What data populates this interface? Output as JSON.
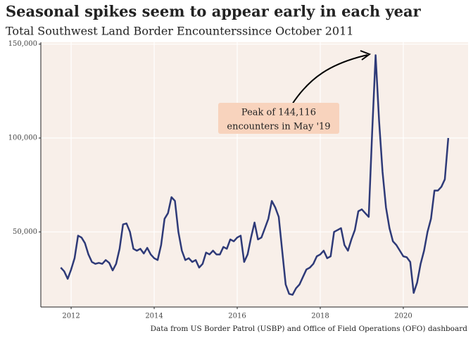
{
  "chart_data": {
    "type": "line",
    "title": "Seasonal spikes seem to appear early in each year",
    "subtitle": "Total Southwest Land Border Encounterssince October 2011",
    "caption": "Data from US Border Patrol (USBP) and Office of Field Operations (OFO) dashboard",
    "annotation": [
      "Peak of 144,116",
      "encounters in May '19"
    ],
    "x": [
      2011.75,
      2011.833,
      2011.917,
      2012.0,
      2012.083,
      2012.167,
      2012.25,
      2012.333,
      2012.417,
      2012.5,
      2012.583,
      2012.667,
      2012.75,
      2012.833,
      2012.917,
      2013.0,
      2013.083,
      2013.167,
      2013.25,
      2013.333,
      2013.417,
      2013.5,
      2013.583,
      2013.667,
      2013.75,
      2013.833,
      2013.917,
      2014.0,
      2014.083,
      2014.167,
      2014.25,
      2014.333,
      2014.417,
      2014.5,
      2014.583,
      2014.667,
      2014.75,
      2014.833,
      2014.917,
      2015.0,
      2015.083,
      2015.167,
      2015.25,
      2015.333,
      2015.417,
      2015.5,
      2015.583,
      2015.667,
      2015.75,
      2015.833,
      2015.917,
      2016.0,
      2016.083,
      2016.167,
      2016.25,
      2016.333,
      2016.417,
      2016.5,
      2016.583,
      2016.667,
      2016.75,
      2016.833,
      2016.917,
      2017.0,
      2017.083,
      2017.167,
      2017.25,
      2017.333,
      2017.417,
      2017.5,
      2017.583,
      2017.667,
      2017.75,
      2017.833,
      2017.917,
      2018.0,
      2018.083,
      2018.167,
      2018.25,
      2018.333,
      2018.417,
      2018.5,
      2018.583,
      2018.667,
      2018.75,
      2018.833,
      2018.917,
      2019.0,
      2019.083,
      2019.167,
      2019.25,
      2019.333,
      2019.417,
      2019.5,
      2019.583,
      2019.667,
      2019.75,
      2019.833,
      2019.917,
      2020.0,
      2020.083,
      2020.167,
      2020.25,
      2020.333,
      2020.417,
      2020.5,
      2020.583,
      2020.667,
      2020.75,
      2020.833,
      2020.917,
      2021.0,
      2021.083
    ],
    "series": [
      {
        "color": "#2e3a78",
        "values": [
          31000,
          29000,
          25000,
          30000,
          36000,
          48000,
          47000,
          44000,
          38000,
          34000,
          33000,
          33500,
          33000,
          35000,
          33500,
          29500,
          33000,
          41000,
          54000,
          54500,
          50000,
          41000,
          40000,
          41000,
          38500,
          41500,
          38000,
          36000,
          35000,
          43000,
          57000,
          60000,
          68500,
          66500,
          50000,
          40000,
          35000,
          36000,
          34000,
          35000,
          31000,
          33000,
          39000,
          38000,
          40000,
          38000,
          38000,
          42000,
          41000,
          46000,
          45000,
          47000,
          48000,
          34000,
          38000,
          47000,
          55000,
          46000,
          47000,
          52000,
          57000,
          66500,
          63000,
          58000,
          40000,
          22000,
          17000,
          16500,
          20000,
          22000,
          26000,
          30000,
          31000,
          33000,
          37000,
          38000,
          40000,
          36000,
          37000,
          50000,
          51000,
          52000,
          43000,
          40000,
          46000,
          51000,
          61000,
          62000,
          60000,
          58000,
          103000,
          144116,
          109000,
          82000,
          63000,
          52000,
          45000,
          43000,
          40000,
          37000,
          36500,
          34000,
          17500,
          23000,
          33000,
          40000,
          50000,
          57000,
          72000,
          72000,
          74000,
          78000,
          100000
        ]
      }
    ],
    "xlim": [
      2011.27,
      2021.56
    ],
    "xticks": [
      2012,
      2014,
      2016,
      2018,
      2020
    ],
    "ylim": [
      10000,
      151000
    ],
    "yticks": [
      {
        "value": 50000,
        "label": "50,000"
      },
      {
        "value": 100000,
        "label": "100,000"
      },
      {
        "value": 150000,
        "label": "150,000"
      }
    ],
    "grid": true
  }
}
